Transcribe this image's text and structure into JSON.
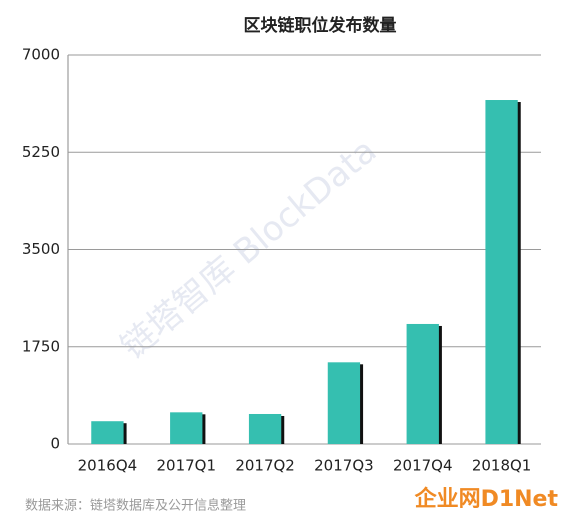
{
  "chart_data": {
    "type": "bar",
    "title": "区块链职位发布数量",
    "categories": [
      "2016Q4",
      "2017Q1",
      "2017Q2",
      "2017Q3",
      "2017Q4",
      "2018Q1"
    ],
    "values": [
      410,
      570,
      540,
      1470,
      2160,
      6190
    ],
    "color": "#35bfb0",
    "ylim": [
      0,
      7000
    ],
    "yticks": [
      0,
      1750,
      3500,
      5250,
      7000
    ],
    "grid": true,
    "source": "数据来源：链塔数据库及公开信息整理",
    "watermark": "链塔智库 BlockData",
    "logo": "企业网D1Net"
  }
}
